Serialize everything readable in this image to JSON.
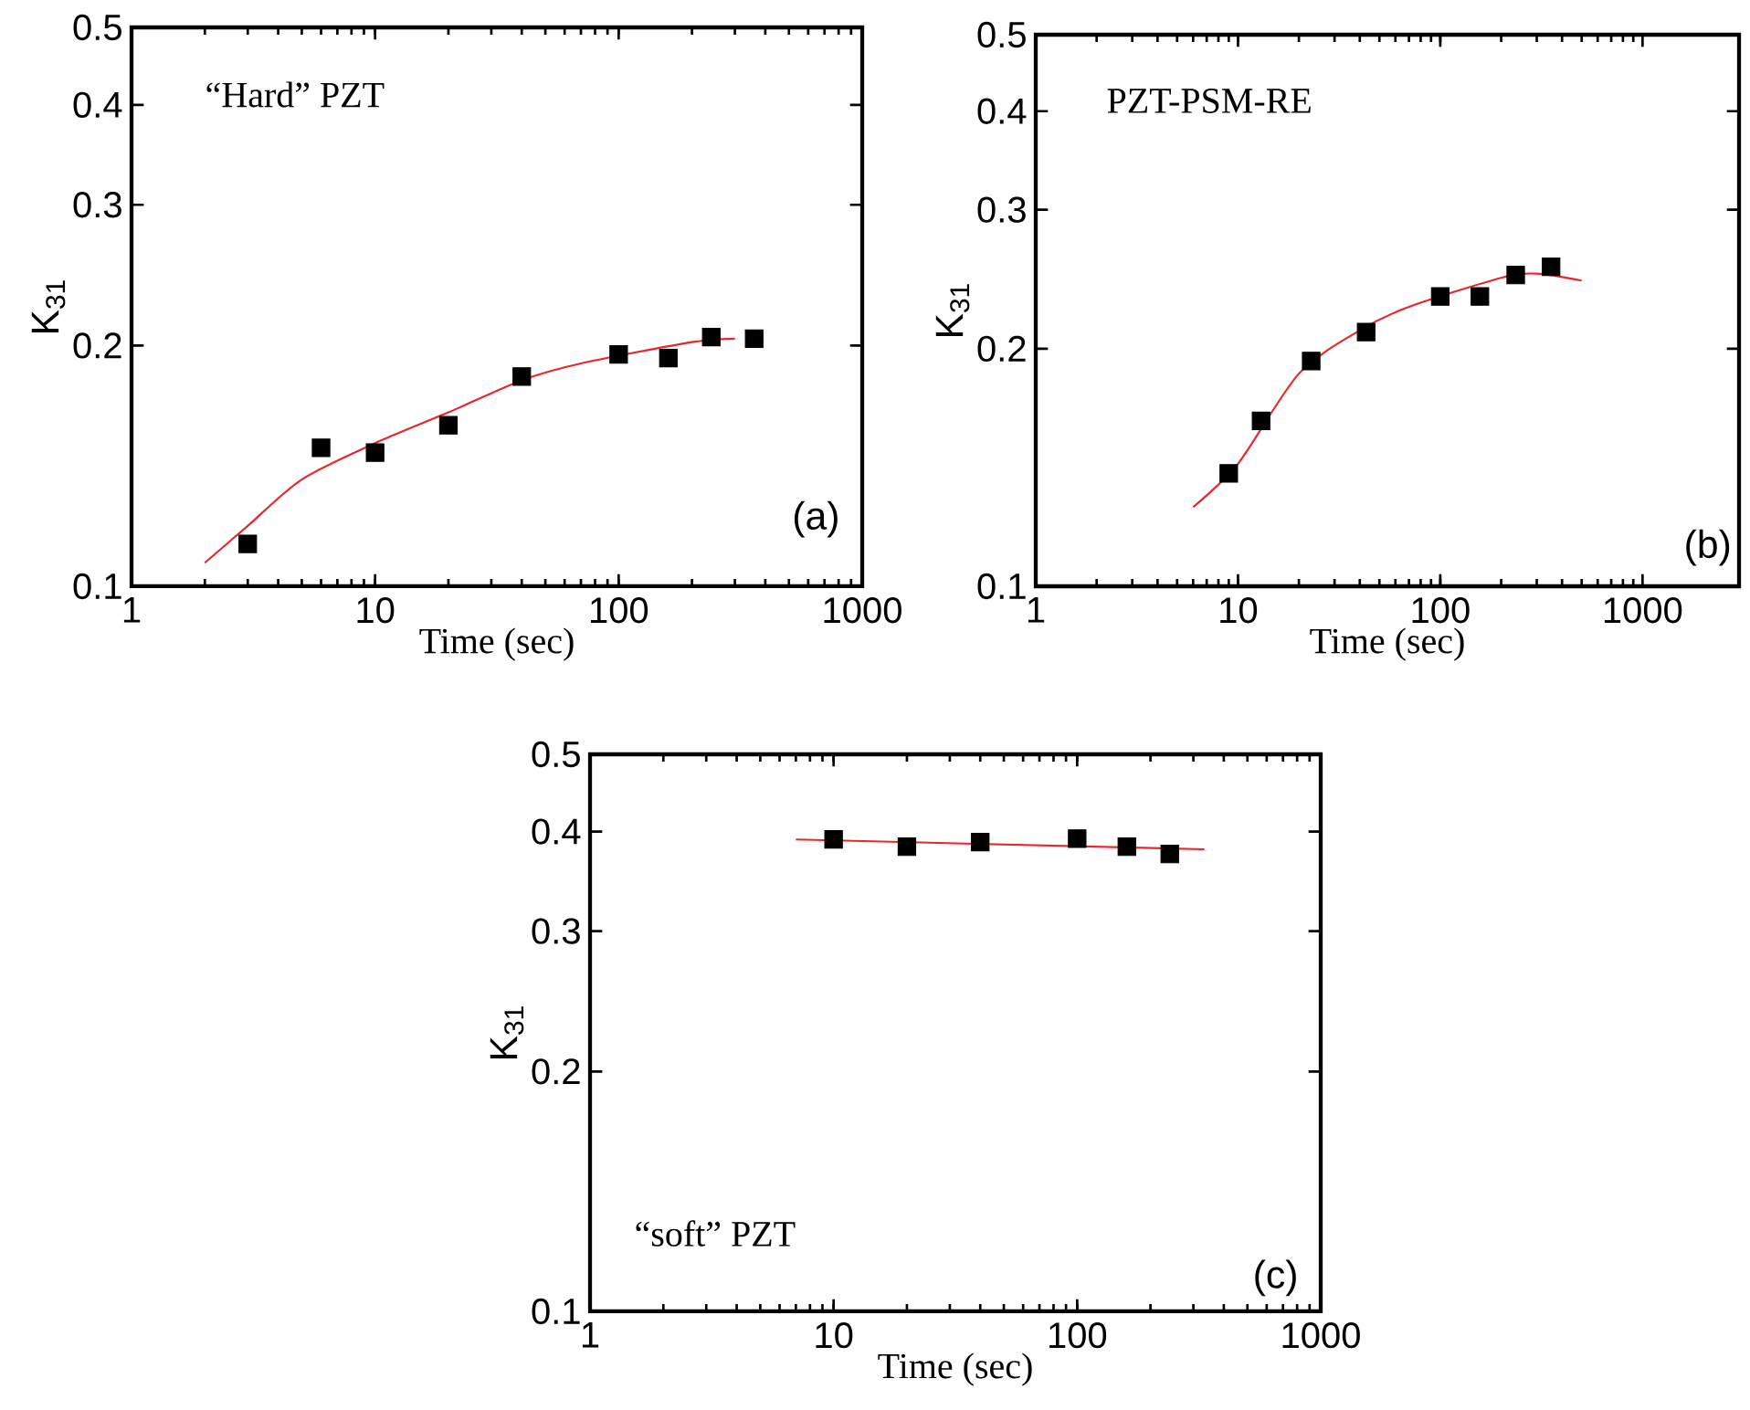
{
  "chart_data": [
    {
      "type": "scatter",
      "xlabel": "Time (sec)",
      "ylabel": "K$_{31}$",
      "log": "xy",
      "xlim": [
        1,
        1000
      ],
      "ylim": [
        0.1,
        0.5
      ],
      "xticks": [
        1,
        10,
        100,
        1000
      ],
      "yticks": [
        0.1,
        0.2,
        0.3,
        0.4,
        0.5
      ],
      "annotations": [
        "“Hard” PZT",
        "(a)"
      ],
      "series": [
        {
          "marker": "square",
          "color": "#000000",
          "x": [
            3,
            6,
            10,
            20,
            40,
            100,
            160,
            240,
            360
          ],
          "values": [
            0.113,
            0.149,
            0.147,
            0.159,
            0.183,
            0.195,
            0.193,
            0.205,
            0.204
          ]
        },
        {
          "type": "line",
          "marker": "none",
          "color": "#e8262b",
          "x": [
            2,
            3,
            5,
            10,
            20,
            40,
            70,
            200,
            300
          ],
          "values": [
            0.107,
            0.119,
            0.136,
            0.151,
            0.165,
            0.181,
            0.19,
            0.202,
            0.204
          ]
        }
      ]
    },
    {
      "type": "scatter",
      "xlabel": "Time (sec)",
      "ylabel": "K$_{31}$",
      "log": "xy",
      "xlim": [
        1,
        3000
      ],
      "ylim": [
        0.1,
        0.5
      ],
      "xticks": [
        1,
        10,
        100,
        1000
      ],
      "yticks": [
        0.1,
        0.2,
        0.3,
        0.4,
        0.5
      ],
      "annotations": [
        "PZT-PSM-RE",
        "(b)"
      ],
      "series": [
        {
          "marker": "square",
          "color": "#000000",
          "x": [
            9,
            13,
            23,
            43,
            100,
            157,
            236,
            353
          ],
          "values": [
            0.139,
            0.162,
            0.193,
            0.21,
            0.233,
            0.233,
            0.248,
            0.254
          ]
        },
        {
          "type": "line",
          "marker": "none",
          "color": "#e8262b",
          "x": [
            6,
            10,
            20,
            40,
            70,
            200,
            300,
            500
          ],
          "values": [
            0.126,
            0.143,
            0.186,
            0.211,
            0.226,
            0.246,
            0.249,
            0.244
          ]
        }
      ]
    },
    {
      "type": "scatter",
      "xlabel": "Time (sec)",
      "ylabel": "K$_{31}$",
      "log": "xy",
      "xlim": [
        1,
        1000
      ],
      "ylim": [
        0.1,
        0.5
      ],
      "xticks": [
        1,
        10,
        100,
        1000
      ],
      "yticks": [
        0.1,
        0.2,
        0.3,
        0.4,
        0.5
      ],
      "annotations": [
        "“soft” PZT",
        "(c)"
      ],
      "series": [
        {
          "marker": "square",
          "color": "#000000",
          "x": [
            10,
            20,
            40,
            100,
            160,
            240
          ],
          "values": [
            0.391,
            0.383,
            0.388,
            0.392,
            0.383,
            0.375
          ]
        },
        {
          "type": "line",
          "marker": "none",
          "color": "#e8262b",
          "x": [
            7,
            333
          ],
          "values": [
            0.391,
            0.38
          ]
        }
      ]
    }
  ]
}
